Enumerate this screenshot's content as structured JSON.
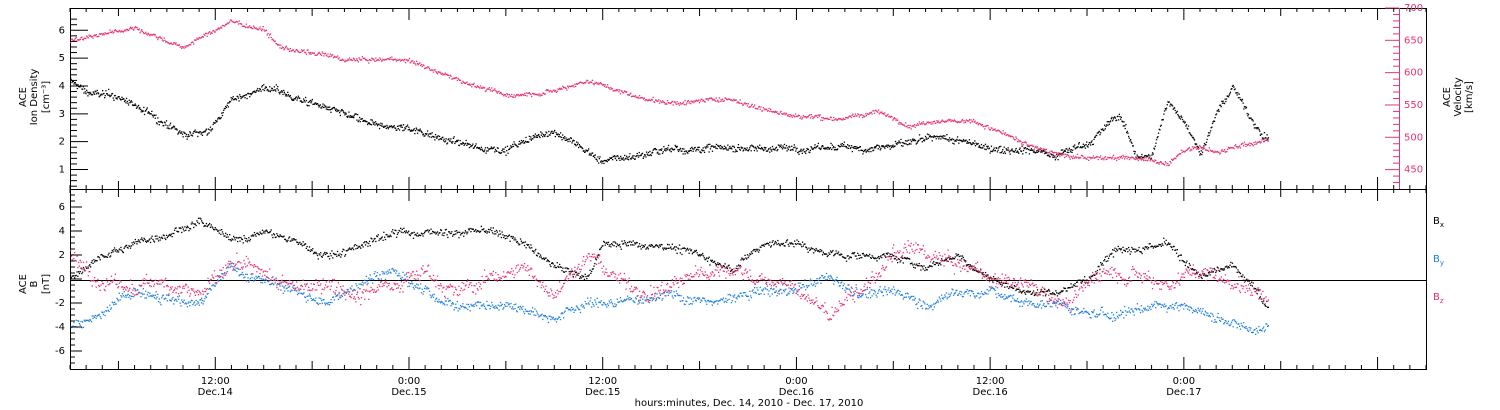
{
  "chart_data": [
    {
      "type": "scatter",
      "panel": "top",
      "ylabel_left": [
        "ACE",
        "Ion Density",
        "[cm⁻³]"
      ],
      "ylabel_right": [
        "ACE",
        "Velocity",
        "[km/s]"
      ],
      "ylim_left": [
        0.3,
        6.8
      ],
      "ylim_right": [
        420,
        700
      ],
      "yticks_left": [
        1,
        2,
        3,
        4,
        5,
        6
      ],
      "yticks_right": [
        450,
        500,
        550,
        600,
        650,
        700
      ],
      "right_axis_color": "#e8336d",
      "series": [
        {
          "name": "Ion Density",
          "axis": "left",
          "color": "#000000",
          "key_hours": [
            3,
            4,
            6,
            8,
            10,
            11.5,
            13,
            15,
            17,
            19,
            22,
            24,
            26,
            28,
            30,
            33,
            36,
            38,
            40,
            42,
            44,
            46,
            48,
            50,
            52,
            54,
            57,
            60,
            62,
            64,
            66,
            68,
            69,
            70,
            71,
            72,
            73,
            74,
            75,
            76,
            77
          ],
          "key_values": [
            4.2,
            3.8,
            3.6,
            3.0,
            2.2,
            2.4,
            3.5,
            4.0,
            3.6,
            3.2,
            2.5,
            2.5,
            2.2,
            1.8,
            1.8,
            2.4,
            1.3,
            1.5,
            1.8,
            1.8,
            1.8,
            1.8,
            1.8,
            1.8,
            1.8,
            1.9,
            2.1,
            1.8,
            1.8,
            1.6,
            2.0,
            3.0,
            1.5,
            1.5,
            3.5,
            2.8,
            1.6,
            3.0,
            4.0,
            3.0,
            2.2
          ]
        },
        {
          "name": "Velocity",
          "axis": "right",
          "color": "#e8336d",
          "key_hours": [
            3,
            5,
            7,
            10,
            13,
            15,
            16,
            18,
            20,
            24,
            27,
            30,
            33,
            35,
            38,
            40,
            44,
            46,
            48,
            51,
            53,
            55,
            57,
            59,
            61,
            62,
            64,
            66,
            68,
            70,
            71,
            72,
            73,
            74,
            75,
            77
          ],
          "key_values": [
            650,
            660,
            670,
            640,
            680,
            665,
            640,
            630,
            620,
            620,
            590,
            565,
            575,
            590,
            565,
            555,
            560,
            545,
            535,
            530,
            540,
            520,
            530,
            525,
            505,
            490,
            475,
            470,
            470,
            465,
            460,
            480,
            485,
            475,
            485,
            495
          ]
        }
      ]
    },
    {
      "type": "scatter",
      "panel": "bottom",
      "ylabel_left": [
        "ACE",
        "B",
        "[nT]"
      ],
      "ylim": [
        -7.5,
        7.5
      ],
      "yticks": [
        -6,
        -4,
        -2,
        0,
        2,
        4,
        6
      ],
      "zero_line": true,
      "xlabel": "hours:minutes, Dec. 14, 2010 - Dec. 17, 2010",
      "series": [
        {
          "name": "B",
          "subscript": "x",
          "color": "#000000",
          "key_hours": [
            3,
            5,
            7,
            9,
            11,
            13,
            15,
            17,
            19,
            21,
            23,
            25,
            27,
            29,
            31,
            33,
            35,
            36,
            38,
            40,
            42,
            44,
            46,
            48,
            50,
            52,
            54,
            56,
            58,
            60,
            62,
            64,
            66,
            67,
            68,
            69,
            70,
            71,
            73,
            75,
            77
          ],
          "key_values": [
            0,
            2,
            3,
            4,
            5,
            3,
            4,
            3,
            2,
            3,
            4,
            4,
            4,
            4,
            3,
            1,
            0,
            3,
            3,
            3,
            2,
            1,
            3,
            3,
            2,
            2,
            2,
            1,
            2,
            0,
            -1,
            -1,
            0,
            2,
            3,
            3,
            3,
            3,
            0,
            1,
            -2
          ],
          "amplitude": 1.2
        },
        {
          "name": "B",
          "subscript": "y",
          "color": "#1f7fe0",
          "key_hours": [
            3,
            5,
            7,
            9,
            11,
            13,
            15,
            17,
            19,
            21,
            23,
            25,
            27,
            29,
            31,
            33,
            35,
            37,
            40,
            43,
            46,
            48,
            50,
            52,
            54,
            56,
            58,
            60,
            62,
            64,
            66,
            68,
            70,
            72,
            74,
            76
          ],
          "key_values": [
            -4,
            -3,
            -1,
            -1,
            -2,
            1,
            0,
            -1,
            -2,
            0,
            1,
            -1,
            -2,
            -2,
            -2,
            -3,
            -2,
            -2,
            -1,
            -2,
            -1,
            -1,
            0,
            -1,
            -1,
            -2,
            -1,
            -1,
            -2,
            -2,
            -3,
            -3,
            -2,
            -2,
            -3,
            -4
          ],
          "amplitude": 1.6
        },
        {
          "name": "B",
          "subscript": "z",
          "color": "#e8336d",
          "key_hours": [
            3,
            5,
            7,
            9,
            11,
            13,
            15,
            17,
            19,
            21,
            23,
            25,
            27,
            29,
            31,
            33,
            35,
            37,
            39,
            41,
            44,
            46,
            48,
            50,
            52,
            54,
            56,
            58,
            60,
            62,
            63,
            65,
            67,
            69,
            71,
            73,
            75,
            77
          ],
          "key_values": [
            2,
            0,
            -1,
            0,
            -1,
            1,
            0,
            -1,
            0,
            -1,
            0,
            1,
            -1,
            0,
            1,
            -1,
            2,
            0,
            -1,
            0,
            1,
            0,
            -1,
            -3,
            -1,
            2,
            2,
            1,
            0,
            0,
            -1,
            -2,
            1,
            1,
            0,
            1,
            0,
            -1
          ],
          "amplitude": 2.4
        }
      ]
    }
  ],
  "x_axis": {
    "range_hours": [
      3,
      87
    ],
    "ticks": [
      {
        "hour": 12,
        "time": "12:00",
        "date": "Dec.14"
      },
      {
        "hour": 24,
        "time": "0:00",
        "date": "Dec.15"
      },
      {
        "hour": 36,
        "time": "12:00",
        "date": "Dec.15"
      },
      {
        "hour": 48,
        "time": "0:00",
        "date": "Dec.16"
      },
      {
        "hour": 60,
        "time": "12:00",
        "date": "Dec.16"
      },
      {
        "hour": 72,
        "time": "0:00",
        "date": "Dec.17"
      }
    ],
    "data_end_hour": 77.2
  }
}
